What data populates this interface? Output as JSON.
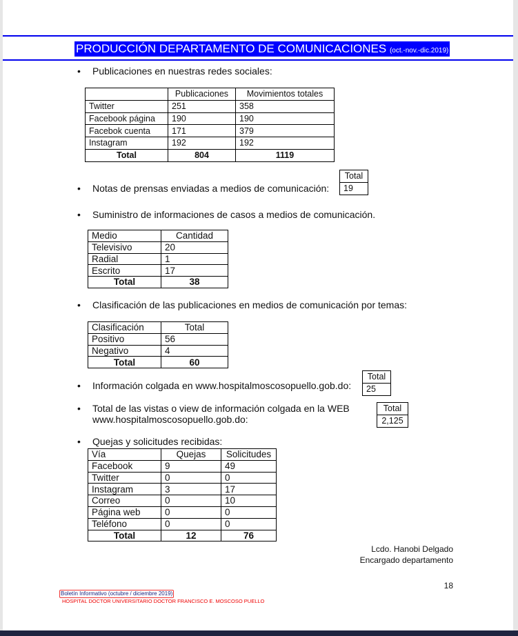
{
  "header": {
    "title": "PRODUCCIÓN DEPARTAMENTO DE COMUNICACIONES",
    "period": "(oct.-nov.-dic.2019)",
    "accent": "#0000ff"
  },
  "sections": {
    "redes": {
      "label": "Publicaciones en nuestras redes sociales:",
      "headers": [
        "",
        "Publicaciones",
        "Movimientos totales"
      ],
      "rows": [
        [
          "Twitter",
          "251",
          "358"
        ],
        [
          "Facebook página",
          "190",
          "190"
        ],
        [
          "Facebok cuenta",
          "171",
          "379"
        ],
        [
          "Instagram",
          "192",
          "192"
        ]
      ],
      "total": [
        "Total",
        "804",
        "1119"
      ]
    },
    "notas": {
      "label": "Notas de prensas enviadas a medios de comunicación:",
      "header": "Total",
      "value": "19"
    },
    "suministro": {
      "label": "Suministro de informaciones de casos a medios de comunicación.",
      "headers": [
        "Medio",
        "Cantidad"
      ],
      "rows": [
        [
          "Televisivo",
          "20"
        ],
        [
          "Radial",
          "1"
        ],
        [
          "Escrito",
          "17"
        ]
      ],
      "total": [
        "Total",
        "38"
      ]
    },
    "clasificacion": {
      "label": "Clasificación de las publicaciones en medios de comunicación por temas:",
      "headers": [
        "Clasificación",
        "Total"
      ],
      "rows": [
        [
          "Positivo",
          "56"
        ],
        [
          "Negativo",
          "4"
        ]
      ],
      "total": [
        "Total",
        "60"
      ]
    },
    "colgada": {
      "label": "Información colgada en www.hospitalmoscosopuello.gob.do:",
      "header": "Total",
      "value": "25"
    },
    "vistas": {
      "label_line1": "Total de las vistas o view de información colgada en la WEB",
      "label_line2": "www.hospitalmoscosopuello.gob.do:",
      "header": "Total",
      "value": "2,125"
    },
    "quejas": {
      "label": "Quejas y solicitudes recibidas:",
      "headers": [
        "Vía",
        "Quejas",
        "Solicitudes"
      ],
      "rows": [
        [
          "Facebook",
          "9",
          "49"
        ],
        [
          "Twitter",
          "0",
          "0"
        ],
        [
          "Instagram",
          "3",
          "17"
        ],
        [
          "Correo",
          "0",
          "10"
        ],
        [
          "Página web",
          "0",
          "0"
        ],
        [
          "Teléfono",
          "0",
          "0"
        ]
      ],
      "total": [
        "Total",
        "12",
        "76"
      ]
    }
  },
  "signature": {
    "name": "Lcdo. Hanobi Delgado",
    "role": "Encargado departamento"
  },
  "page_number": "18",
  "footer": {
    "bulletin": "Boletín Informativo (octubre / diciembre 2019)",
    "hospital": "HOSPITAL DOCTOR UNIVERSITARIO DOCTOR FRANCISCO E. MOSCOSO PUELLO"
  }
}
